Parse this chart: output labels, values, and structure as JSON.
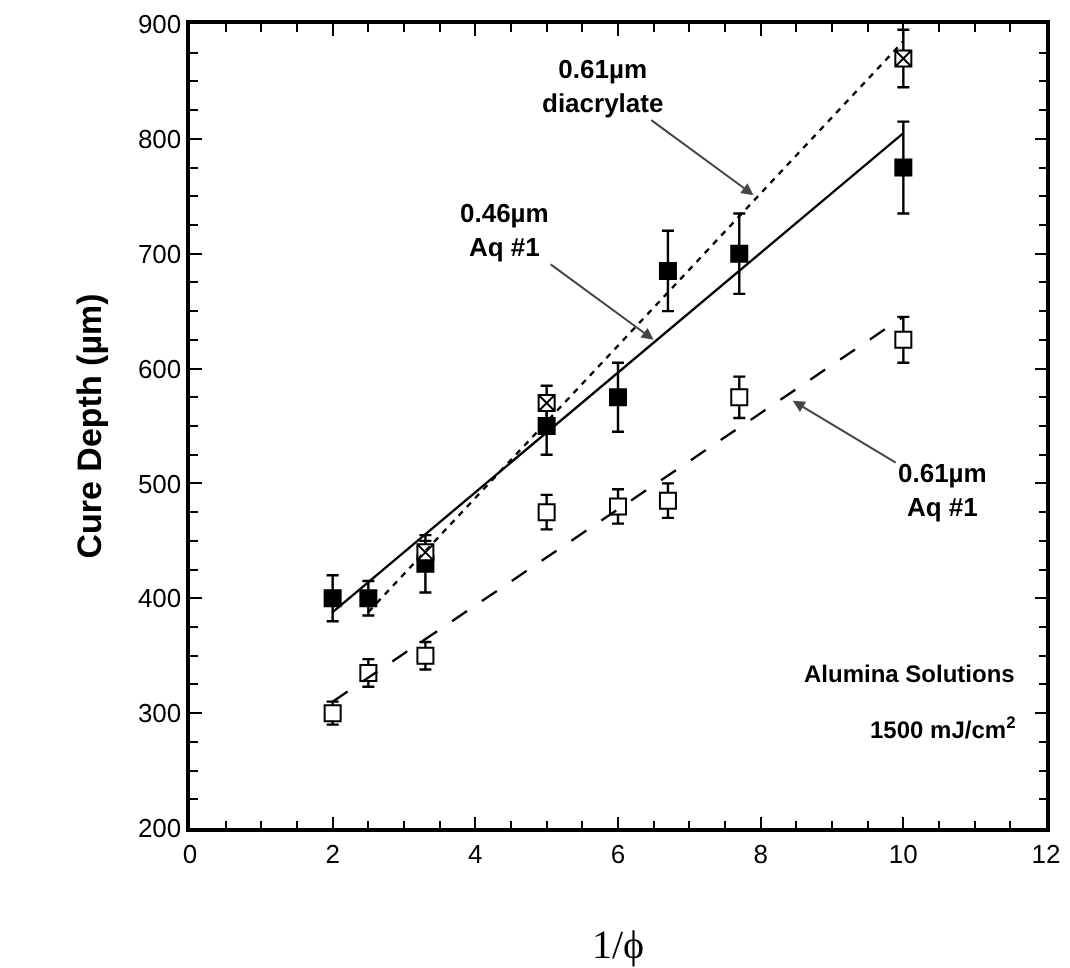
{
  "chart_data": {
    "type": "scatter",
    "xlabel": "1/ϕ",
    "ylabel": "Cure Depth (µm)",
    "xlim": [
      0,
      12
    ],
    "xticks": [
      0,
      2,
      4,
      6,
      8,
      10,
      12
    ],
    "ylim": [
      200,
      900
    ],
    "yticks": [
      200,
      300,
      400,
      500,
      600,
      700,
      800,
      900
    ],
    "grid": false,
    "series": [
      {
        "marker": "square",
        "color": "#000000",
        "x": [
          2,
          2.5,
          3.3,
          5,
          6,
          6.7,
          7.7,
          10
        ],
        "values": [
          400,
          400,
          430,
          550,
          575,
          685,
          700,
          775
        ],
        "errors": [
          20,
          15,
          25,
          25,
          30,
          35,
          35,
          40
        ]
      },
      {
        "marker": "square",
        "color": "#ffffff",
        "x": [
          2,
          2.5,
          3.3,
          5,
          6,
          6.7,
          7.7,
          10
        ],
        "values": [
          300,
          335,
          350,
          475,
          480,
          485,
          575,
          625
        ],
        "errors": [
          10,
          12,
          12,
          15,
          15,
          15,
          18,
          20
        ]
      },
      {
        "marker": "cross",
        "color": "#ffffff",
        "x": [
          3.3,
          5,
          10
        ],
        "values": [
          440,
          570,
          870
        ],
        "errors": [
          10,
          15,
          25
        ]
      },
      {
        "type": "line",
        "line_style": "solid",
        "color": "#000000",
        "x": [
          2,
          10
        ],
        "values": [
          388,
          805
        ]
      },
      {
        "type": "line",
        "line_style": "dashed",
        "color": "#000000",
        "x": [
          2,
          10
        ],
        "values": [
          310,
          645
        ]
      },
      {
        "type": "line",
        "line_style": "dotted",
        "color": "#000000",
        "x": [
          2.5,
          10
        ],
        "values": [
          388,
          885
        ]
      }
    ],
    "annotations": [
      {
        "text": "0.61µm\ndiacrylate",
        "x": 7.9,
        "y": 751
      },
      {
        "text": "0.46µm\nAq #1",
        "x": 6.5,
        "y": 625
      },
      {
        "text": "0.61µm\nAq #1",
        "x": 8.45,
        "y": 572
      },
      "Alumina Solutions",
      "1500 mJ/cm$^{2}$"
    ]
  }
}
